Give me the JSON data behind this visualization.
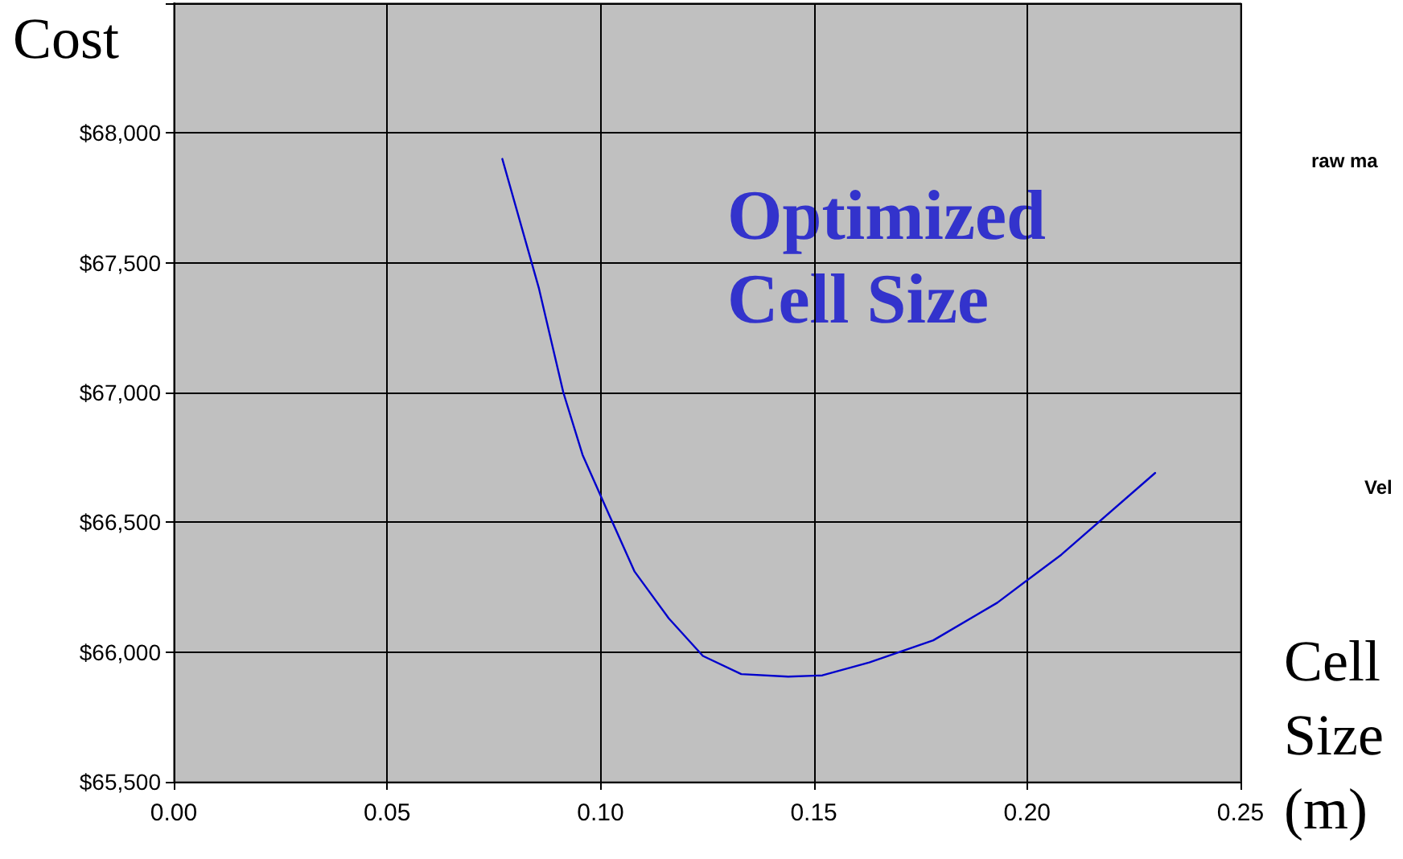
{
  "chart_data": {
    "type": "line",
    "ylabel": "Cost",
    "xlabel": "Cell Size (m)",
    "annotations": [
      "Optimized Cell Size",
      "raw ma",
      "Vel"
    ],
    "x": [
      0.077,
      0.0856,
      0.0913,
      0.0958,
      0.102,
      0.108,
      0.116,
      0.124,
      0.133,
      0.144,
      0.152,
      0.163,
      0.178,
      0.193,
      0.208,
      0.23
    ],
    "series": [
      {
        "color": "#0000cc",
        "values": [
          67900,
          67400,
          67000,
          66760,
          66530,
          66310,
          66130,
          65985,
          65915,
          65905,
          65910,
          65960,
          66045,
          66190,
          66375,
          66690
        ]
      }
    ],
    "xlim": [
      0,
      0.25
    ],
    "xticks": [
      {
        "value": 0,
        "label": "0.00"
      },
      {
        "value": 0.05,
        "label": "0.05"
      },
      {
        "value": 0.1,
        "label": "0.10"
      },
      {
        "value": 0.15,
        "label": "0.15"
      },
      {
        "value": 0.2,
        "label": "0.20"
      },
      {
        "value": 0.25,
        "label": "0.25"
      }
    ],
    "ylim": [
      65500,
      68500
    ],
    "yticks": [
      {
        "value": 65500,
        "label": "$65,500"
      },
      {
        "value": 66000,
        "label": "$66,000"
      },
      {
        "value": 66500,
        "label": "$66,500"
      },
      {
        "value": 67000,
        "label": "$67,000"
      },
      {
        "value": 67500,
        "label": "$67,500"
      },
      {
        "value": 68000,
        "label": "$68,000"
      },
      {
        "value": 68500,
        "label": null
      }
    ],
    "grid": true,
    "marker": "none",
    "line_style": "solid"
  }
}
